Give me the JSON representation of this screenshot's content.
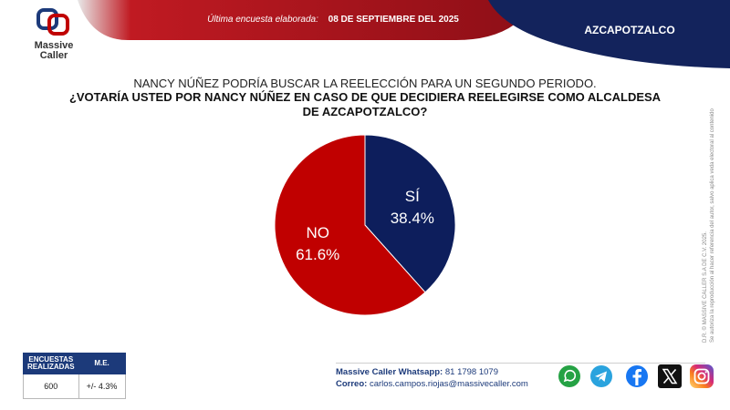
{
  "header": {
    "logo_text": [
      "Massive",
      "Caller"
    ],
    "survey_date_label": "Última encuesta elaborada:",
    "survey_date": "08 DE SEPTIEMBRE DEL 2025",
    "region": "AZCAPOTZALCO",
    "colors": {
      "red": "#b5121b",
      "navy": "#13235c"
    }
  },
  "intro": "NANCY NÚÑEZ PODRÍA BUSCAR LA REELECCIÓN PARA UN SEGUNDO PERIODO.",
  "question": "¿VOTARÍA USTED POR NANCY NÚÑEZ EN CASO DE QUE DECIDIERA REELEGIRSE COMO ALCALDESA DE AZCAPOTZALCO?",
  "chart_data": {
    "type": "pie",
    "slices": [
      {
        "label": "SÍ",
        "value": 38.4,
        "display": "38.4%",
        "color": "#0d1e5c"
      },
      {
        "label": "NO",
        "value": 61.6,
        "display": "61.6%",
        "color": "#c00000"
      }
    ]
  },
  "side_note": {
    "line1": "D.R. © MASSIVE CALLER S.A DE C.V. 2025.",
    "line2": "Se autoriza la reproducción al hacer referencia del autor, salvo aplica veda electoral al contenido"
  },
  "stats": {
    "headers": [
      "ENCUESTAS REALIZADAS",
      "M.E."
    ],
    "values": [
      "600",
      "+/- 4.3%"
    ]
  },
  "contact": {
    "whatsapp_label": "Massive Caller Whatsapp:",
    "whatsapp": "81 1798 1079",
    "email_label": "Correo:",
    "email": "carlos.campos.riojas@massivecaller.com"
  },
  "social_icons": [
    "whatsapp-icon",
    "telegram-icon",
    "facebook-icon",
    "x-icon",
    "instagram-icon"
  ]
}
